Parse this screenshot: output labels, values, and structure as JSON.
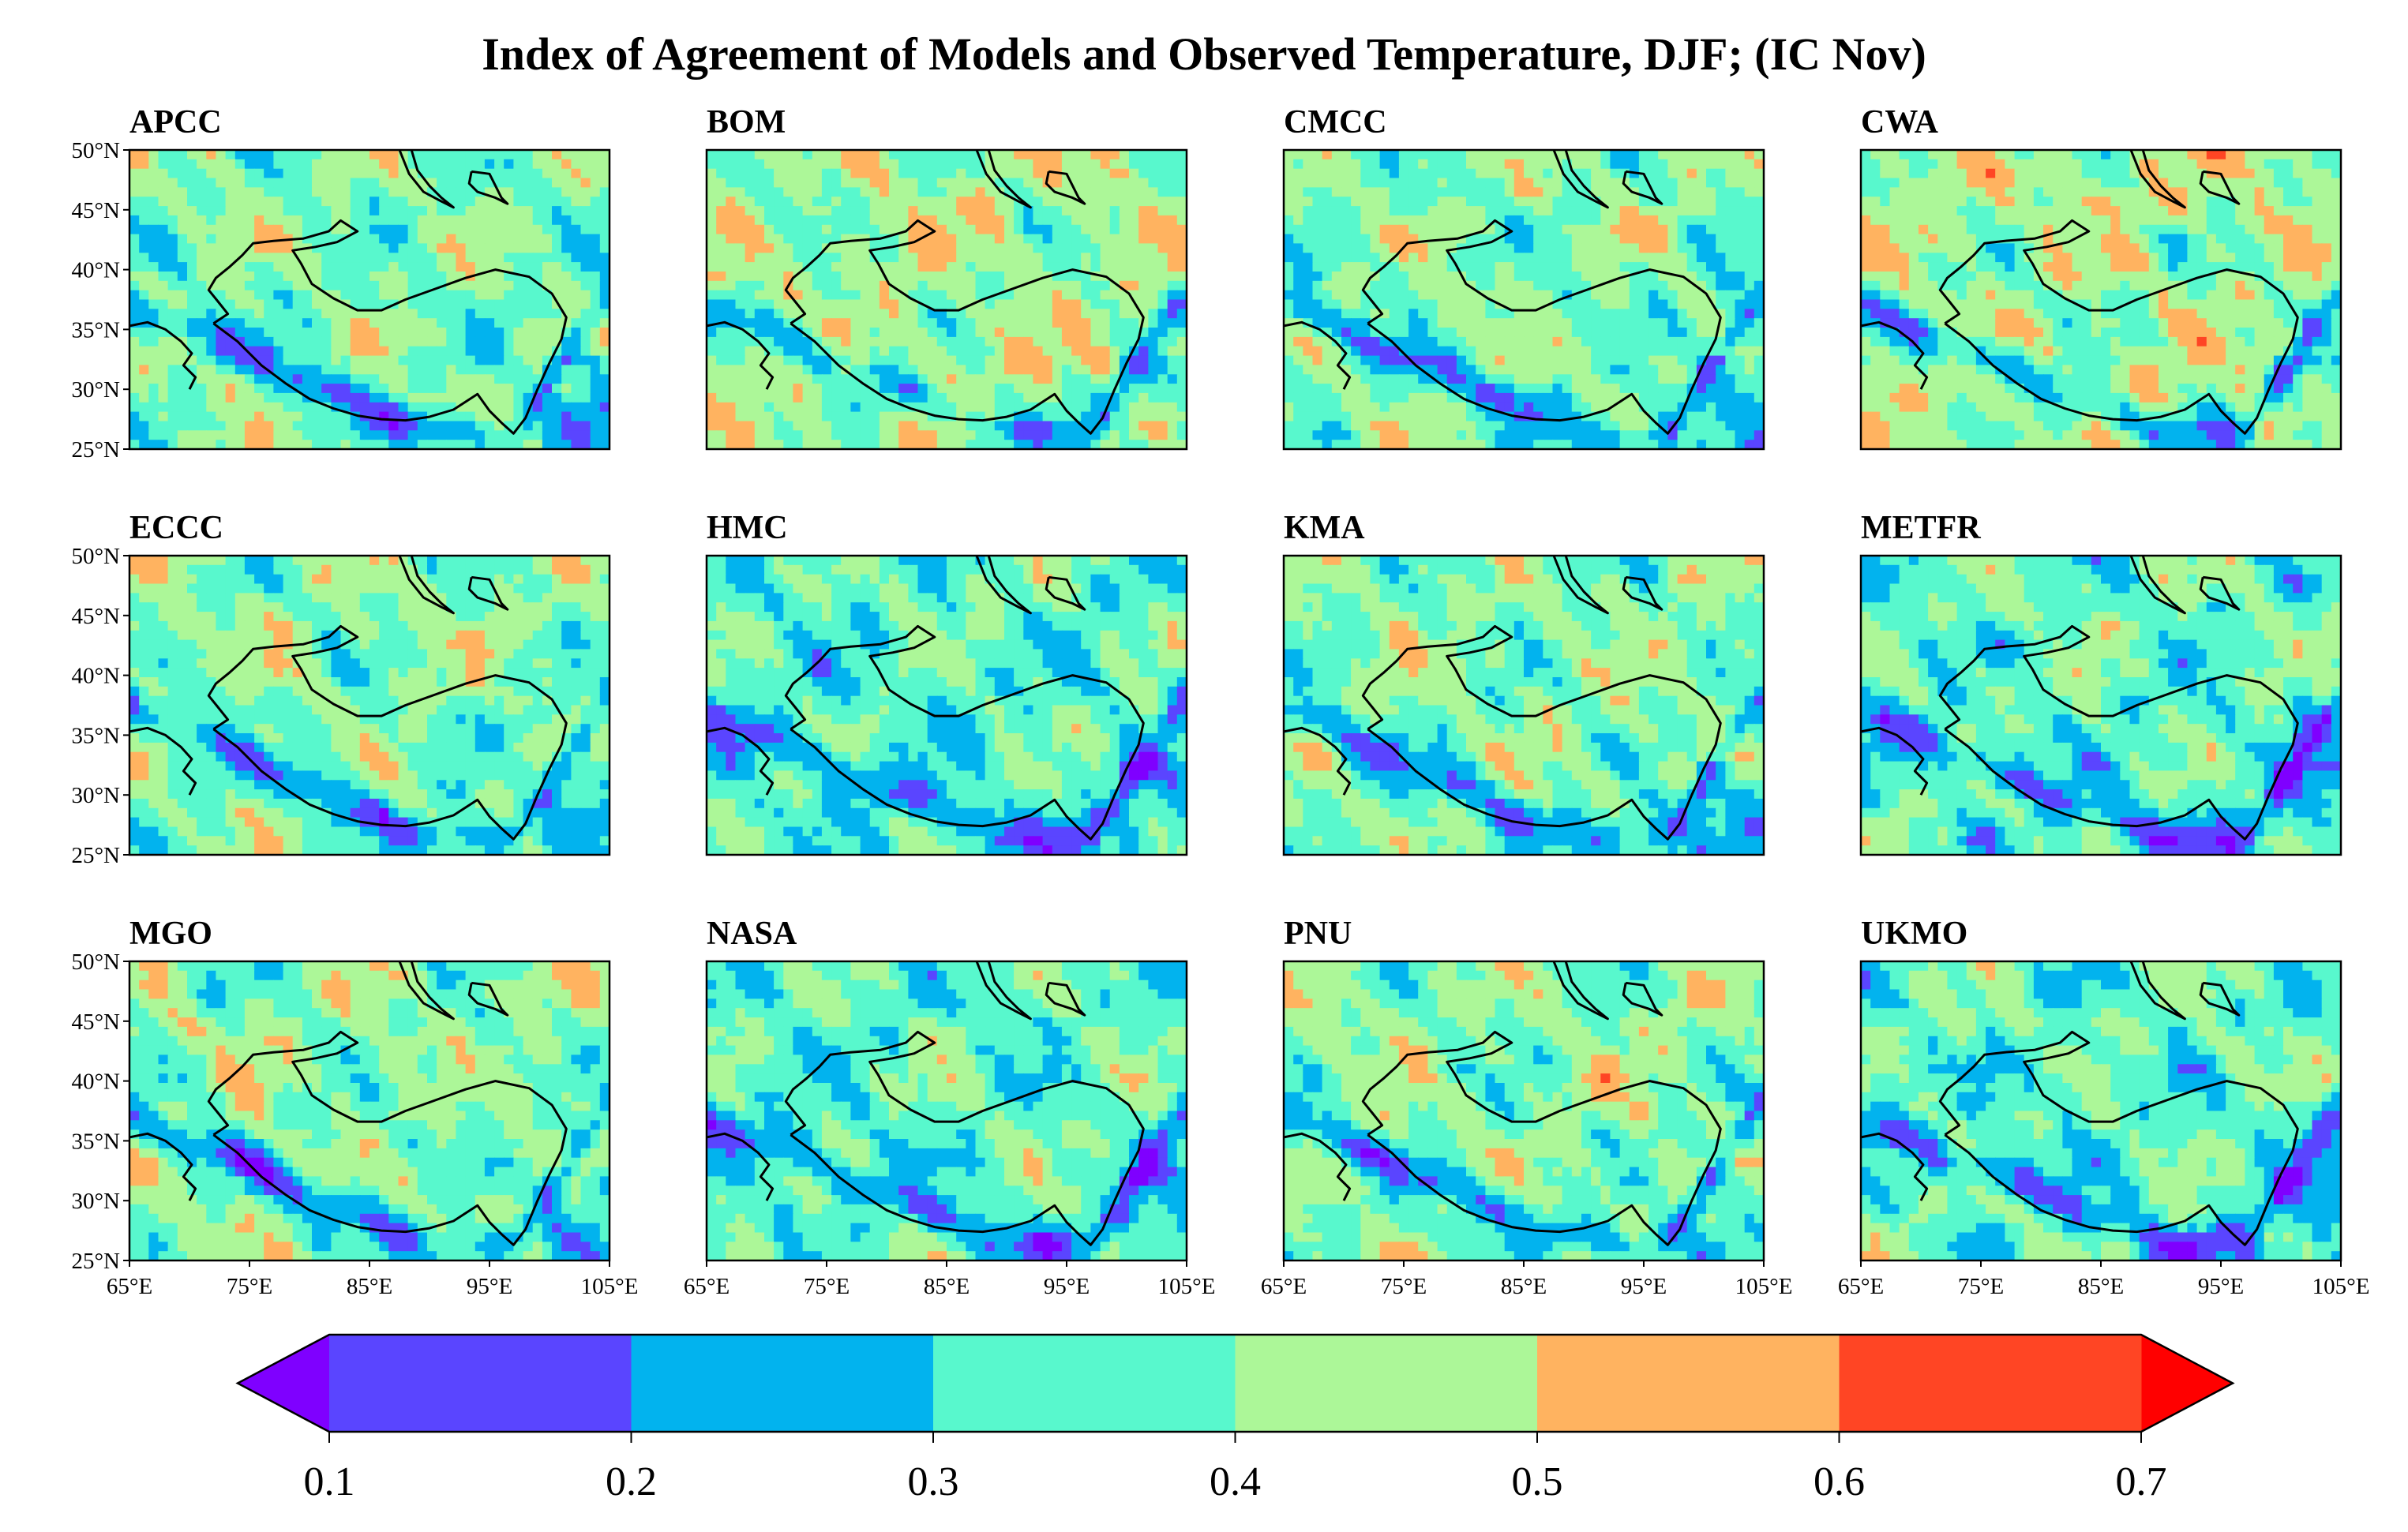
{
  "chart_data": {
    "type": "heatmap",
    "subtype": "filled-contour-map-panels",
    "title": "Index of Agreement of Models and Observed Temperature, DJF;  (IC  Nov)",
    "panels": [
      "APCC",
      "BOM",
      "CMCC",
      "CWA",
      "ECCC",
      "HMC",
      "KMA",
      "METFR",
      "MGO",
      "NASA",
      "PNU",
      "UKMO"
    ],
    "layout": {
      "rows": 3,
      "cols": 4
    },
    "lon_range": [
      65,
      105
    ],
    "lat_range": [
      25,
      50
    ],
    "x_ticks": [
      "65°E",
      "75°E",
      "85°E",
      "95°E",
      "105°E"
    ],
    "x_tick_values": [
      65,
      75,
      85,
      95,
      105
    ],
    "y_ticks": [
      "25°N",
      "30°N",
      "35°N",
      "40°N",
      "45°N",
      "50°N"
    ],
    "y_tick_values": [
      25,
      30,
      35,
      40,
      45,
      50
    ],
    "colorbar": {
      "levels": [
        0.1,
        0.2,
        0.3,
        0.4,
        0.5,
        0.6,
        0.7
      ],
      "tick_labels": [
        "0.1",
        "0.2",
        "0.3",
        "0.4",
        "0.5",
        "0.6",
        "0.7"
      ],
      "colors": [
        "#5a45ff",
        "#02b3ee",
        "#58f8cd",
        "#acf798",
        "#ffb360",
        "#ff4524"
      ],
      "under_color": "#7f00ff",
      "over_color": "#ff0000",
      "extend": "both",
      "orientation": "horizontal",
      "placement": "bottom"
    },
    "overlay": "Tibetan Plateau boundary outline (black)"
  }
}
